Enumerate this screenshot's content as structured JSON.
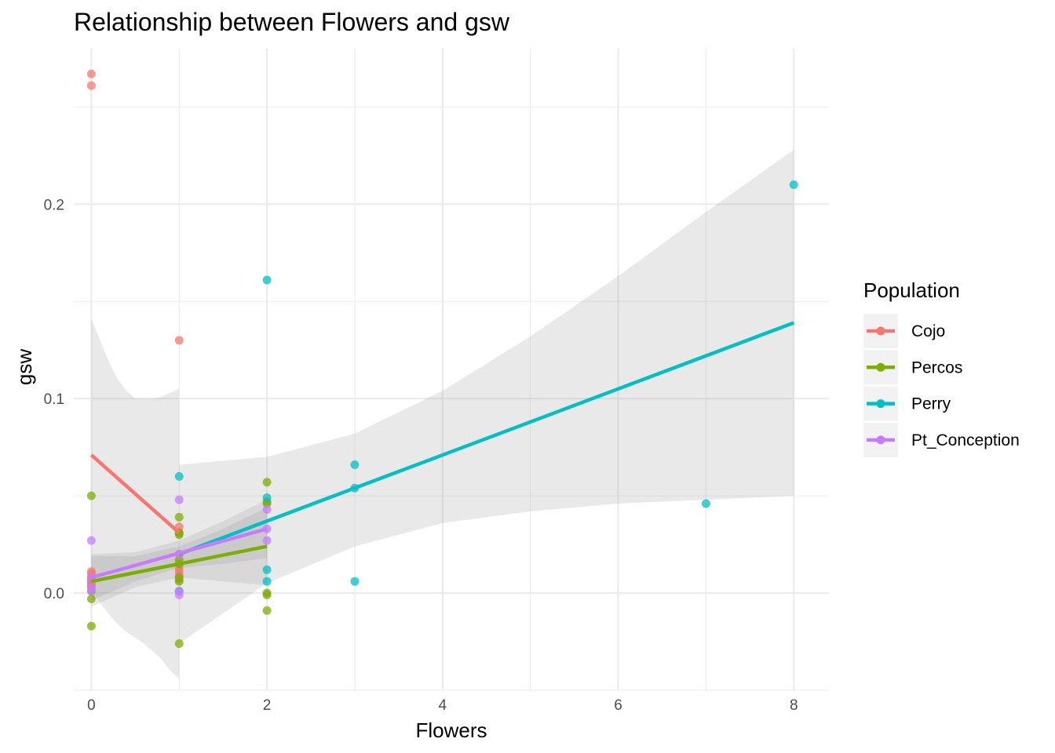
{
  "chart_data": {
    "type": "scatter",
    "title": "Relationship between Flowers and gsw",
    "xlabel": "Flowers",
    "ylabel": "gsw",
    "xlim": [
      -0.2,
      8.4
    ],
    "ylim": [
      -0.05,
      0.28
    ],
    "x_ticks": [
      0,
      2,
      4,
      6,
      8
    ],
    "y_ticks": [
      0.0,
      0.1,
      0.2
    ],
    "x_tick_labels": [
      "0",
      "2",
      "4",
      "6",
      "8"
    ],
    "y_tick_labels": [
      "0.0",
      "0.1",
      "0.2"
    ],
    "grid": true,
    "legend": {
      "title": "Population",
      "position": "right"
    },
    "series": [
      {
        "name": "Cojo",
        "color": "#F8766D",
        "points": [
          [
            0,
            0.267
          ],
          [
            0,
            0.261
          ],
          [
            0,
            0.011
          ],
          [
            0,
            0.01
          ],
          [
            0,
            0.008
          ],
          [
            0,
            0.007
          ],
          [
            0,
            0.006
          ],
          [
            0,
            0.005
          ],
          [
            0,
            0.004
          ],
          [
            0,
            0.003
          ],
          [
            1,
            0.13
          ],
          [
            1,
            0.034
          ],
          [
            1,
            0.031
          ],
          [
            1,
            0.02
          ],
          [
            1,
            0.013
          ],
          [
            1,
            0.011
          ],
          [
            1,
            0.009
          ],
          [
            1,
            0.007
          ]
        ],
        "fit": {
          "x": [
            0,
            1
          ],
          "y": [
            0.071,
            0.031
          ]
        },
        "ribbon": {
          "x": [
            0,
            0.1,
            0.2,
            0.3,
            0.4,
            0.5,
            0.6,
            0.7,
            0.8,
            0.9,
            1
          ],
          "upper": [
            0.141,
            0.13,
            0.119,
            0.11,
            0.104,
            0.1,
            0.1,
            0.1,
            0.101,
            0.103,
            0.105
          ],
          "lower": [
            0.001,
            -0.005,
            -0.011,
            -0.016,
            -0.02,
            -0.023,
            -0.026,
            -0.03,
            -0.034,
            -0.04,
            -0.044
          ]
        }
      },
      {
        "name": "Percos",
        "color": "#7CAE00",
        "points": [
          [
            0,
            0.05
          ],
          [
            0,
            0.001
          ],
          [
            0,
            -0.003
          ],
          [
            0,
            -0.017
          ],
          [
            1,
            0.039
          ],
          [
            1,
            0.031
          ],
          [
            1,
            0.03
          ],
          [
            1,
            0.017
          ],
          [
            1,
            0.015
          ],
          [
            1,
            0.008
          ],
          [
            1,
            0.006
          ],
          [
            1,
            -0.026
          ],
          [
            2,
            0.057
          ],
          [
            2,
            0.047
          ],
          [
            2,
            0.046
          ],
          [
            2,
            0.0
          ],
          [
            2,
            -0.001
          ],
          [
            2,
            -0.009
          ]
        ],
        "fit": {
          "x": [
            0,
            2
          ],
          "y": [
            0.006,
            0.024
          ]
        },
        "ribbon": {
          "x": [
            0,
            0.5,
            1,
            1.5,
            2
          ],
          "upper": [
            0.019,
            0.019,
            0.024,
            0.033,
            0.044
          ],
          "lower": [
            -0.007,
            0.003,
            0.008,
            0.006,
            0.004
          ]
        }
      },
      {
        "name": "Perry",
        "color": "#00BFC4",
        "points": [
          [
            1,
            0.06
          ],
          [
            1,
            0.001
          ],
          [
            2,
            0.161
          ],
          [
            2,
            0.049
          ],
          [
            2,
            0.012
          ],
          [
            2,
            0.006
          ],
          [
            3,
            0.066
          ],
          [
            3,
            0.054
          ],
          [
            3,
            0.006
          ],
          [
            7,
            0.046
          ],
          [
            8,
            0.21
          ]
        ],
        "fit": {
          "x": [
            1,
            8
          ],
          "y": [
            0.02,
            0.139
          ]
        },
        "ribbon": {
          "x": [
            1,
            2,
            3,
            4,
            5,
            6,
            7,
            8
          ],
          "upper": [
            0.066,
            0.07,
            0.082,
            0.104,
            0.132,
            0.163,
            0.196,
            0.228
          ],
          "lower": [
            -0.026,
            0.005,
            0.024,
            0.036,
            0.042,
            0.046,
            0.048,
            0.05
          ]
        }
      },
      {
        "name": "Pt_Conception",
        "color": "#C77CFF",
        "points": [
          [
            0,
            0.027
          ],
          [
            0,
            0.008
          ],
          [
            0,
            0.003
          ],
          [
            0,
            0.001
          ],
          [
            1,
            0.048
          ],
          [
            1,
            0.02
          ],
          [
            1,
            0.001
          ],
          [
            1,
            -0.001
          ],
          [
            2,
            0.043
          ],
          [
            2,
            0.033
          ],
          [
            2,
            0.027
          ]
        ],
        "fit": {
          "x": [
            0,
            2
          ],
          "y": [
            0.008,
            0.033
          ]
        },
        "ribbon": {
          "x": [
            0,
            0.5,
            1,
            1.5,
            2
          ],
          "upper": [
            0.02,
            0.021,
            0.027,
            0.037,
            0.048
          ],
          "lower": [
            -0.004,
            0.006,
            0.013,
            0.015,
            0.018
          ]
        }
      }
    ]
  }
}
